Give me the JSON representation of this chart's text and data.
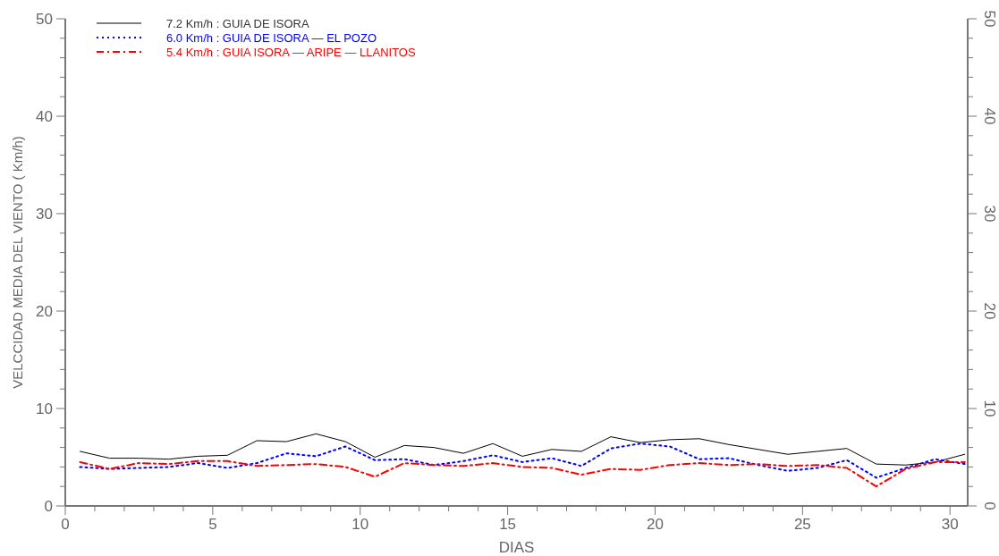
{
  "chart_data": {
    "type": "line",
    "xlabel": "DIAS",
    "ylabel": "VELCCIDAD MEDIA DEL VIENTO ( Km/h)",
    "x": [
      0.5,
      1.5,
      2.5,
      3.5,
      4.5,
      5.5,
      6.5,
      7.5,
      8.5,
      9.5,
      10.5,
      11.5,
      12.5,
      13.5,
      14.5,
      15.5,
      16.5,
      17.5,
      18.5,
      19.5,
      20.5,
      21.5,
      22.5,
      23.5,
      24.5,
      25.5,
      26.5,
      27.5,
      28.5,
      29.5,
      30.5
    ],
    "series": [
      {
        "name": "7.2 Km/h : GUIA DE ISORA",
        "color": "#000000",
        "line_style": "solid",
        "values": [
          5.6,
          4.9,
          4.9,
          4.8,
          5.1,
          5.2,
          6.7,
          6.6,
          7.4,
          6.6,
          5.0,
          6.2,
          6.0,
          5.4,
          6.4,
          5.1,
          5.8,
          5.6,
          7.1,
          6.5,
          6.8,
          6.9,
          6.3,
          5.8,
          5.3,
          5.6,
          5.9,
          4.3,
          4.2,
          4.5,
          5.3
        ]
      },
      {
        "name": "6.0 Km/h : GUIA DE ISORA — EL POZO",
        "color": "#0000ff",
        "line_style": "dotted",
        "values": [
          4.0,
          3.8,
          3.9,
          4.0,
          4.4,
          3.9,
          4.4,
          5.4,
          5.1,
          6.1,
          4.7,
          4.8,
          4.2,
          4.6,
          5.2,
          4.5,
          4.9,
          4.1,
          5.9,
          6.4,
          6.1,
          4.8,
          4.9,
          4.2,
          3.6,
          3.9,
          4.7,
          2.9,
          3.9,
          4.8,
          4.3
        ]
      },
      {
        "name": "5.4 Km/h : GUIA ISORA — ARIPE — LLANITOS",
        "color": "#ff0000",
        "line_style": "dashdot",
        "values": [
          4.5,
          3.8,
          4.4,
          4.3,
          4.6,
          4.6,
          4.1,
          4.2,
          4.3,
          4.0,
          3.0,
          4.4,
          4.2,
          4.1,
          4.4,
          4.0,
          3.9,
          3.2,
          3.8,
          3.7,
          4.2,
          4.4,
          4.2,
          4.3,
          4.1,
          4.2,
          3.9,
          2.0,
          3.8,
          4.5,
          4.5
        ]
      }
    ],
    "xlim": [
      0,
      30.6
    ],
    "ylim": [
      0,
      50
    ],
    "xticks": [
      0,
      {
        "value": 1,
        "label": null
      },
      {
        "value": 2,
        "label": null
      },
      {
        "value": 3,
        "label": null
      },
      {
        "value": 4,
        "label": null
      },
      5,
      {
        "value": 6,
        "label": null
      },
      {
        "value": 7,
        "label": null
      },
      {
        "value": 8,
        "label": null
      },
      {
        "value": 9,
        "label": null
      },
      10,
      {
        "value": 11,
        "label": null
      },
      {
        "value": 12,
        "label": null
      },
      {
        "value": 13,
        "label": null
      },
      {
        "value": 14,
        "label": null
      },
      15,
      {
        "value": 16,
        "label": null
      },
      {
        "value": 17,
        "label": null
      },
      {
        "value": 18,
        "label": null
      },
      {
        "value": 19,
        "label": null
      },
      20,
      {
        "value": 21,
        "label": null
      },
      {
        "value": 22,
        "label": null
      },
      {
        "value": 23,
        "label": null
      },
      {
        "value": 24,
        "label": null
      },
      25,
      {
        "value": 26,
        "label": null
      },
      {
        "value": 27,
        "label": null
      },
      {
        "value": 28,
        "label": null
      },
      {
        "value": 29,
        "label": null
      },
      30
    ],
    "yticks": [
      0,
      {
        "value": 2,
        "label": null
      },
      {
        "value": 4,
        "label": null
      },
      {
        "value": 6,
        "label": null
      },
      {
        "value": 8,
        "label": null
      },
      10,
      {
        "value": 12,
        "label": null
      },
      {
        "value": 14,
        "label": null
      },
      {
        "value": 16,
        "label": null
      },
      {
        "value": 18,
        "label": null
      },
      20,
      {
        "value": 22,
        "label": null
      },
      {
        "value": 24,
        "label": null
      },
      {
        "value": 26,
        "label": null
      },
      {
        "value": 28,
        "label": null
      },
      30,
      {
        "value": 32,
        "label": null
      },
      {
        "value": 34,
        "label": null
      },
      {
        "value": 36,
        "label": null
      },
      {
        "value": 38,
        "label": null
      },
      40,
      {
        "value": 42,
        "label": null
      },
      {
        "value": 44,
        "label": null
      },
      {
        "value": 46,
        "label": null
      },
      {
        "value": 48,
        "label": null
      },
      50
    ],
    "y2lim": [
      0,
      50
    ],
    "y2ticks": [
      0,
      {
        "value": 2,
        "label": null
      },
      {
        "value": 4,
        "label": null
      },
      {
        "value": 6,
        "label": null
      },
      {
        "value": 8,
        "label": null
      },
      10,
      {
        "value": 12,
        "label": null
      },
      {
        "value": 14,
        "label": null
      },
      {
        "value": 16,
        "label": null
      },
      {
        "value": 18,
        "label": null
      },
      20,
      {
        "value": 22,
        "label": null
      },
      {
        "value": 24,
        "label": null
      },
      {
        "value": 26,
        "label": null
      },
      {
        "value": 28,
        "label": null
      },
      30,
      {
        "value": 32,
        "label": null
      },
      {
        "value": 34,
        "label": null
      },
      {
        "value": 36,
        "label": null
      },
      {
        "value": 38,
        "label": null
      },
      40,
      {
        "value": 42,
        "label": null
      },
      {
        "value": 44,
        "label": null
      },
      {
        "value": 46,
        "label": null
      },
      {
        "value": 48,
        "label": null
      },
      50
    ],
    "grid": false,
    "legend": "top left",
    "marker": "none"
  }
}
